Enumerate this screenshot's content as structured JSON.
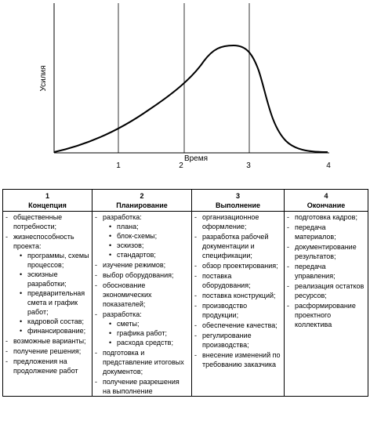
{
  "diagram": {
    "ylabel": "Усилия",
    "xlabel": "Время",
    "markers": [
      "1",
      "2",
      "3",
      "4"
    ]
  },
  "table": {
    "columns": [
      {
        "num": "1",
        "title": "Концепция",
        "items": [
          {
            "text": "общественные потребности;"
          },
          {
            "text": "жизнеспособность проекта:",
            "sub": [
              "программы, схемы процессов;",
              "эскизные разработки;",
              "предварительная смета и график работ;",
              "кадровой состав;",
              "финансирование;"
            ]
          },
          {
            "text": "возможные варианты;"
          },
          {
            "text": "получение решения;"
          },
          {
            "text": "предложения на продолжение работ"
          }
        ]
      },
      {
        "num": "2",
        "title": "Планирование",
        "items": [
          {
            "text": "разработка:",
            "sub": [
              "плана;",
              "блок-схемы;",
              "эскизов;",
              "стандартов;"
            ]
          },
          {
            "text": "изучение режимов;"
          },
          {
            "text": "выбор оборудования;"
          },
          {
            "text": "обоснование экономических показателей;"
          },
          {
            "text": "разработка:",
            "sub": [
              "сметы;",
              "графика работ;",
              "расхода средств;"
            ]
          },
          {
            "text": "подготовка и представление итоговых документов;"
          },
          {
            "text": "получение разрешения на выполнение"
          }
        ]
      },
      {
        "num": "3",
        "title": "Выполнение",
        "items": [
          {
            "text": "организационное оформление;"
          },
          {
            "text": "разработка рабочей документации и спецификации;"
          },
          {
            "text": "обзор проектирования;"
          },
          {
            "text": "поставка оборудования;"
          },
          {
            "text": "поставка конструкций;"
          },
          {
            "text": "производство продукции;"
          },
          {
            "text": "обеспечение качества;"
          },
          {
            "text": "регулирование производства;"
          },
          {
            "text": "внесение изменений по требованию заказчика"
          }
        ]
      },
      {
        "num": "4",
        "title": "Окончание",
        "items": [
          {
            "text": "подготовка кадров;"
          },
          {
            "text": "передача материалов;"
          },
          {
            "text": "документирование результатов;"
          },
          {
            "text": "передача управления;"
          },
          {
            "text": "реализация остатков ресурсов;"
          },
          {
            "text": "расформирование проектного коллектива"
          }
        ]
      }
    ]
  }
}
